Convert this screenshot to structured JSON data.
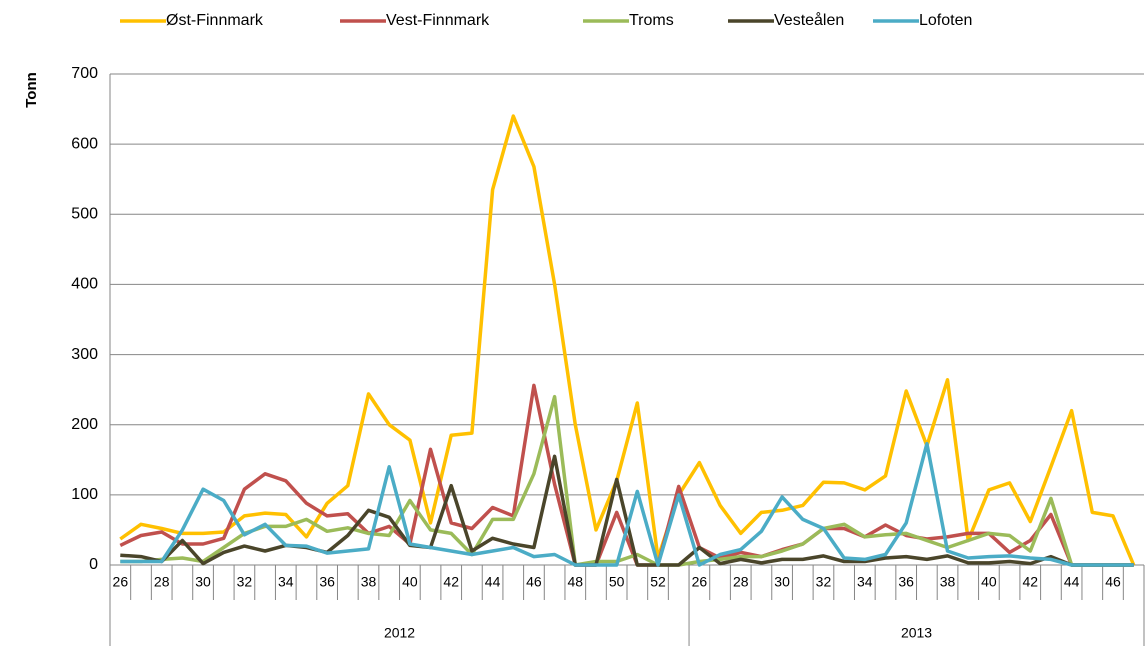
{
  "chart_data": {
    "type": "line",
    "y_label": "Tonn",
    "categories": [
      "26",
      null,
      "28",
      null,
      "30",
      null,
      "32",
      null,
      "34",
      null,
      "36",
      null,
      "38",
      null,
      "40",
      null,
      "42",
      null,
      "44",
      null,
      "46",
      null,
      "48",
      null,
      "50",
      null,
      "52",
      null,
      "26",
      null,
      "28",
      null,
      "30",
      null,
      "32",
      null,
      "34",
      null,
      "36",
      null,
      "38",
      null,
      "40",
      null,
      "42",
      null,
      "44",
      null,
      "46",
      null
    ],
    "groups": [
      {
        "label": "2012",
        "count": 28
      },
      {
        "label": "2013",
        "count": 22
      }
    ],
    "series": [
      {
        "name": "Øst-Finnmark",
        "color": "#FFC000",
        "values": [
          37,
          58,
          52,
          45,
          45,
          47,
          70,
          74,
          72,
          40,
          88,
          113,
          244,
          200,
          178,
          60,
          185,
          188,
          535,
          640,
          568,
          400,
          200,
          50,
          120,
          231,
          10,
          100,
          146,
          85,
          45,
          75,
          78,
          85,
          118,
          117,
          107,
          127,
          248,
          170,
          264,
          35,
          107,
          117,
          62,
          140,
          220,
          75,
          70,
          0
        ]
      },
      {
        "name": "Vest-Finnmark",
        "color": "#C0504D",
        "values": [
          28,
          42,
          47,
          30,
          30,
          38,
          108,
          130,
          120,
          88,
          70,
          73,
          45,
          55,
          30,
          165,
          60,
          52,
          82,
          70,
          256,
          115,
          0,
          0,
          75,
          0,
          0,
          112,
          25,
          10,
          18,
          12,
          22,
          30,
          52,
          52,
          40,
          57,
          42,
          37,
          40,
          45,
          45,
          18,
          35,
          72,
          0,
          0,
          0,
          0
        ]
      },
      {
        "name": "Troms",
        "color": "#9BBB59",
        "values": [
          5,
          5,
          8,
          10,
          5,
          25,
          45,
          55,
          55,
          65,
          48,
          53,
          45,
          42,
          92,
          50,
          45,
          15,
          65,
          65,
          130,
          240,
          0,
          5,
          5,
          15,
          0,
          0,
          5,
          8,
          12,
          12,
          20,
          30,
          52,
          58,
          40,
          43,
          45,
          35,
          25,
          35,
          45,
          42,
          20,
          95,
          0,
          0,
          0,
          0
        ]
      },
      {
        "name": "Vesteålen",
        "color": "#4A452A",
        "values": [
          14,
          12,
          5,
          35,
          2,
          18,
          27,
          20,
          28,
          25,
          18,
          42,
          78,
          68,
          28,
          25,
          113,
          20,
          38,
          30,
          25,
          155,
          0,
          0,
          122,
          0,
          0,
          0,
          25,
          2,
          8,
          3,
          8,
          8,
          13,
          5,
          5,
          10,
          12,
          8,
          13,
          3,
          3,
          5,
          2,
          12,
          0,
          0,
          0,
          0
        ]
      },
      {
        "name": "Lofoten",
        "color": "#4BACC6",
        "values": [
          5,
          5,
          5,
          50,
          108,
          92,
          43,
          58,
          28,
          27,
          17,
          20,
          23,
          140,
          30,
          25,
          20,
          15,
          20,
          25,
          12,
          15,
          0,
          0,
          0,
          105,
          0,
          100,
          0,
          15,
          22,
          48,
          97,
          65,
          52,
          10,
          8,
          15,
          60,
          173,
          20,
          10,
          12,
          13,
          10,
          8,
          0,
          0,
          0,
          0
        ]
      }
    ],
    "ylim": [
      0,
      700
    ],
    "yticks": [
      0,
      100,
      200,
      300,
      400,
      500,
      600,
      700
    ],
    "grid": true,
    "legend": "top"
  }
}
